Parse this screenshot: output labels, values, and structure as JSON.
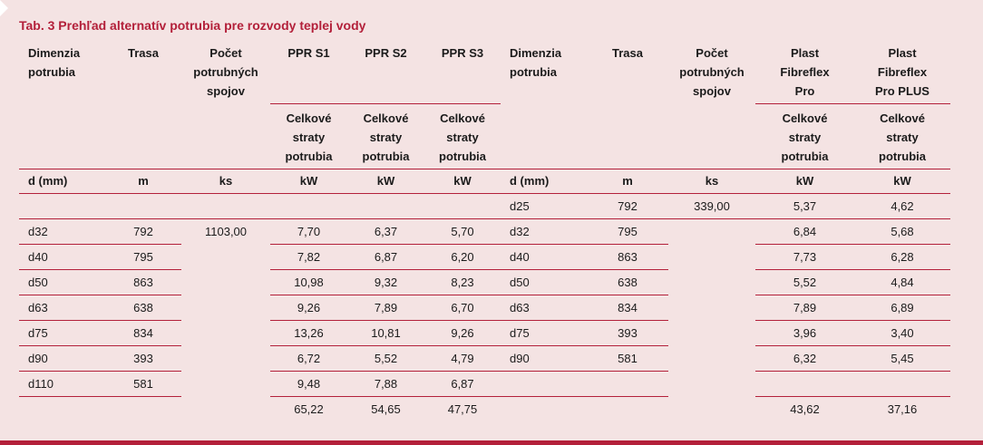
{
  "title": "Tab. 3 Prehľad alternatív potrubia pre rozvody teplej vody",
  "headers": {
    "dim": [
      "Dimenzia",
      "potrubia"
    ],
    "trasa": "Trasa",
    "spoje": [
      "Počet",
      "potrubných",
      "spojov"
    ],
    "s1": "PPR S1",
    "s2": "PPR S2",
    "s3": "PPR S3",
    "plast1": [
      "Plast",
      "Fibreflex",
      "Pro"
    ],
    "plast2": [
      "Plast",
      "Fibreflex",
      "Pro PLUS"
    ],
    "straty": [
      "Celkové",
      "straty",
      "potrubia"
    ]
  },
  "units": {
    "dim": "d (mm)",
    "trasa": "m",
    "spoje": "ks",
    "kw": "kW"
  },
  "left_rows": [
    {
      "dim": "",
      "trasa": "",
      "spoje": "",
      "s1": "",
      "s2": "",
      "s3": ""
    },
    {
      "dim": "d32",
      "trasa": "792",
      "spoje": "1103,00",
      "s1": "7,70",
      "s2": "6,37",
      "s3": "5,70"
    },
    {
      "dim": "d40",
      "trasa": "795",
      "spoje": "",
      "s1": "7,82",
      "s2": "6,87",
      "s3": "6,20"
    },
    {
      "dim": "d50",
      "trasa": "863",
      "spoje": "",
      "s1": "10,98",
      "s2": "9,32",
      "s3": "8,23"
    },
    {
      "dim": "d63",
      "trasa": "638",
      "spoje": "",
      "s1": "9,26",
      "s2": "7,89",
      "s3": "6,70"
    },
    {
      "dim": "d75",
      "trasa": "834",
      "spoje": "",
      "s1": "13,26",
      "s2": "10,81",
      "s3": "9,26"
    },
    {
      "dim": "d90",
      "trasa": "393",
      "spoje": "",
      "s1": "6,72",
      "s2": "5,52",
      "s3": "4,79"
    },
    {
      "dim": "d110",
      "trasa": "581",
      "spoje": "",
      "s1": "9,48",
      "s2": "7,88",
      "s3": "6,87"
    }
  ],
  "right_rows": [
    {
      "dim": "d25",
      "trasa": "792",
      "spoje": "339,00",
      "p1": "5,37",
      "p2": "4,62"
    },
    {
      "dim": "d32",
      "trasa": "795",
      "spoje": "",
      "p1": "6,84",
      "p2": "5,68"
    },
    {
      "dim": "d40",
      "trasa": "863",
      "spoje": "",
      "p1": "7,73",
      "p2": "6,28"
    },
    {
      "dim": "d50",
      "trasa": "638",
      "spoje": "",
      "p1": "5,52",
      "p2": "4,84"
    },
    {
      "dim": "d63",
      "trasa": "834",
      "spoje": "",
      "p1": "7,89",
      "p2": "6,89"
    },
    {
      "dim": "d75",
      "trasa": "393",
      "spoje": "",
      "p1": "3,96",
      "p2": "3,40"
    },
    {
      "dim": "d90",
      "trasa": "581",
      "spoje": "",
      "p1": "6,32",
      "p2": "5,45"
    },
    {
      "dim": "",
      "trasa": "",
      "spoje": "",
      "p1": "",
      "p2": ""
    }
  ],
  "totals": {
    "s1": "65,22",
    "s2": "54,65",
    "s3": "47,75",
    "p1": "43,62",
    "p2": "37,16"
  },
  "colors": {
    "accent": "#b3203a",
    "background": "#f4e3e3"
  }
}
